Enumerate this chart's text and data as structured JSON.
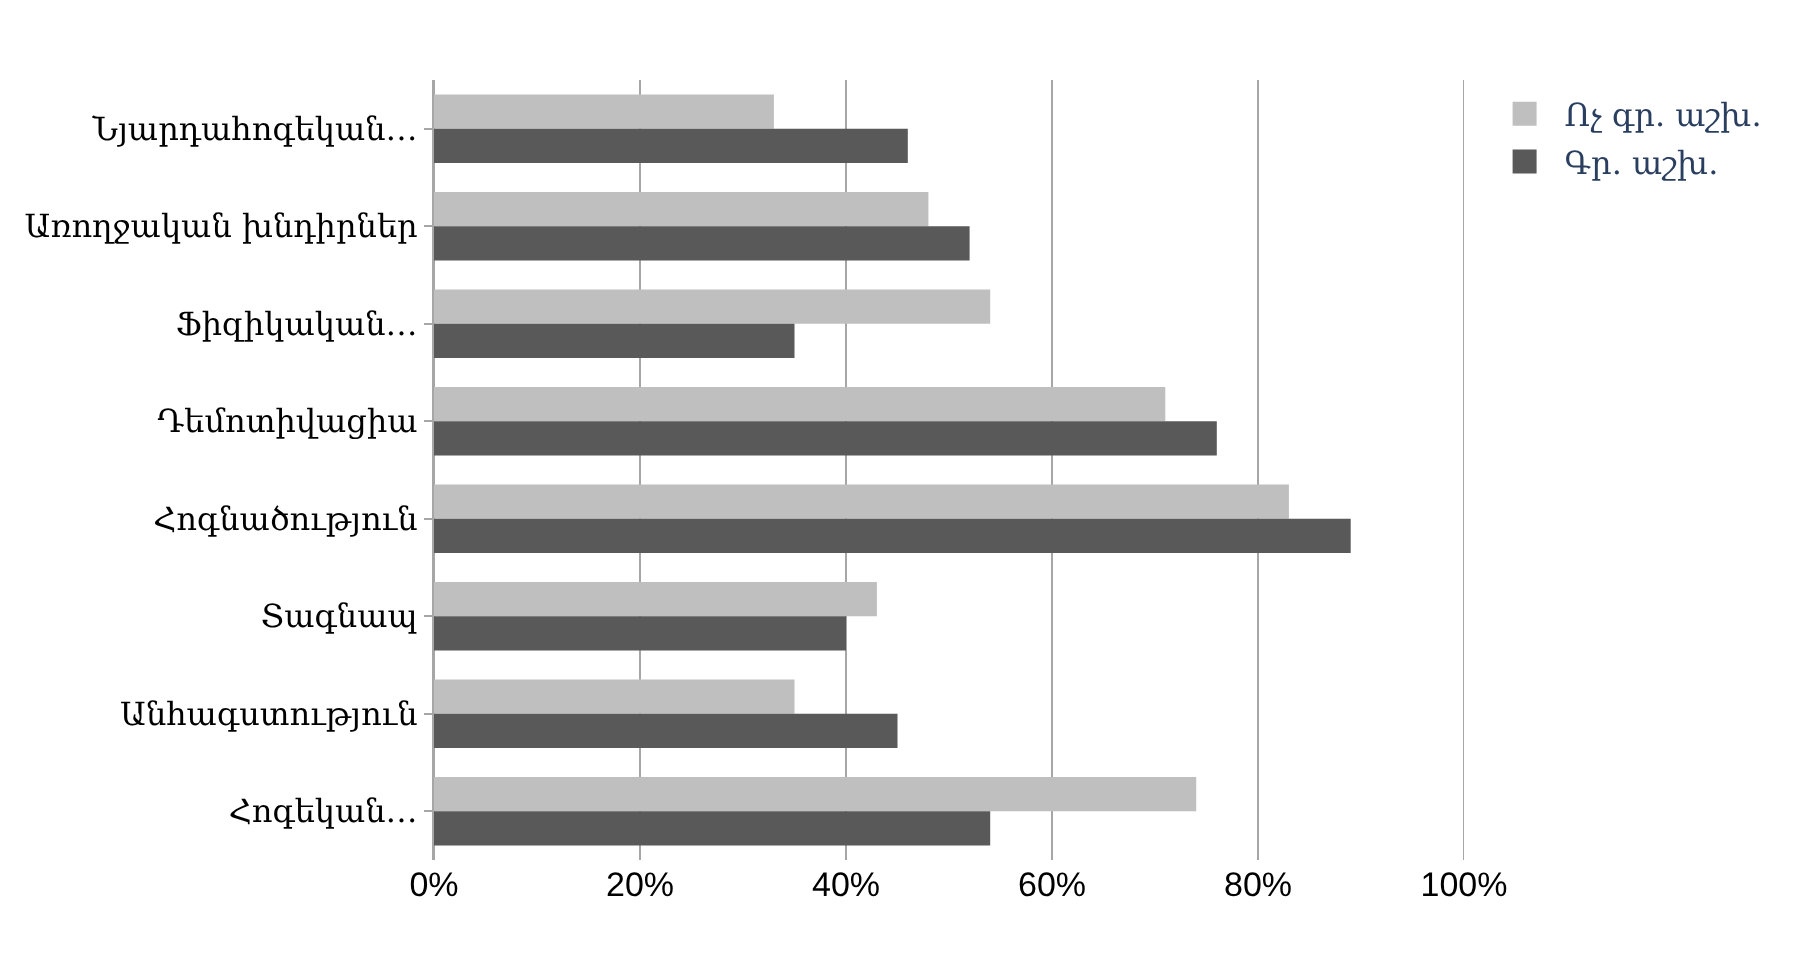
{
  "chart_data": {
    "type": "bar",
    "orientation": "horizontal",
    "categories": [
      "Նյարդահոգեկան…",
      "Առողջական խնդիրներ",
      "Ֆիզիկական…",
      "Դեմոտիվացիա",
      "Հոգնածություն",
      "Տագնապ",
      "Անհագստություն",
      "Հոգեկան…"
    ],
    "series": [
      {
        "name": "Ոչ գր. աշխ.",
        "color": "#bfbfbf",
        "values": [
          33,
          48,
          54,
          71,
          83,
          43,
          35,
          74
        ]
      },
      {
        "name": "Գր. աշխ.",
        "color": "#595959",
        "values": [
          46,
          52,
          35,
          76,
          89,
          40,
          45,
          54
        ]
      }
    ],
    "xlim": [
      0,
      100
    ],
    "xticks": [
      {
        "value": 0,
        "label": "0%"
      },
      {
        "value": 20,
        "label": "20%"
      },
      {
        "value": 40,
        "label": "40%"
      },
      {
        "value": 60,
        "label": "60%"
      },
      {
        "value": 80,
        "label": "80%"
      },
      {
        "value": 100,
        "label": "100%"
      }
    ],
    "grid": "x",
    "legend": "top right"
  }
}
